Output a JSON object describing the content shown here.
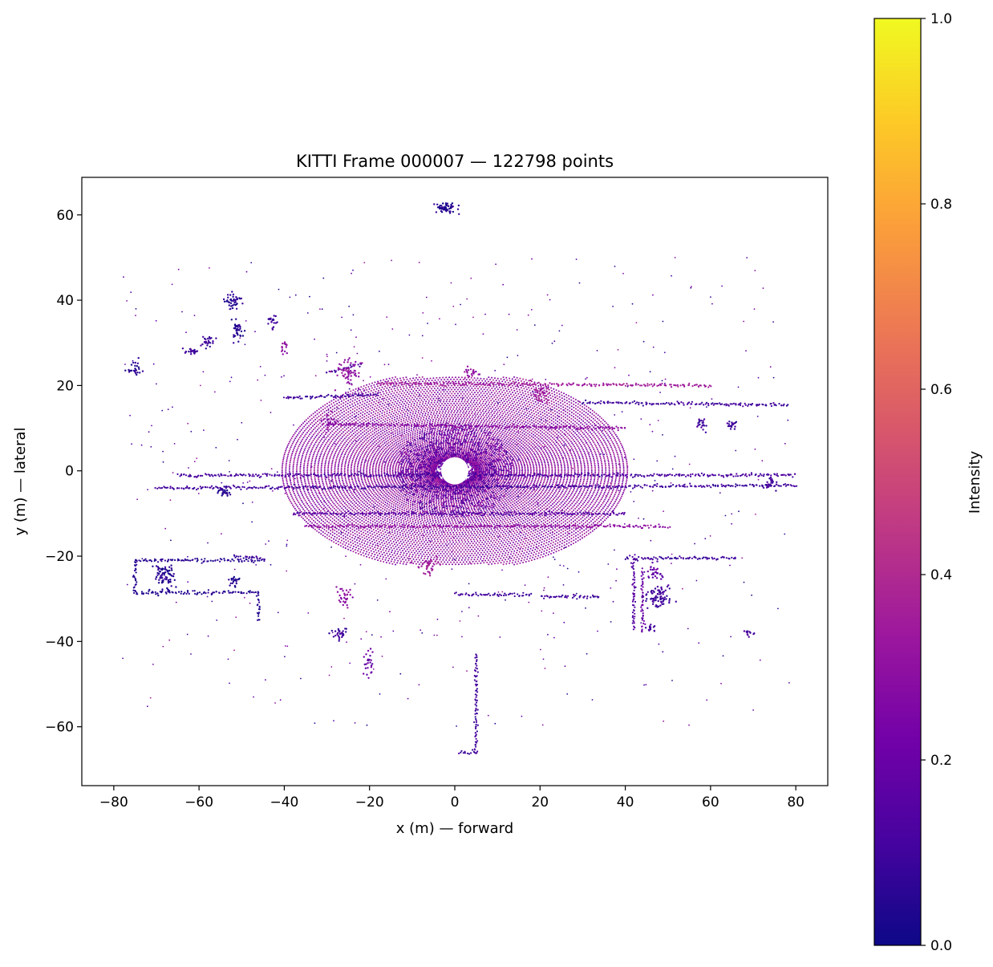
{
  "chart_data": {
    "type": "scatter",
    "title": "KITTI Frame 000007 — 122798 points",
    "xlabel": "x (m) — forward",
    "ylabel": "y (m) — lateral",
    "xlim": [
      -87.5,
      87.5
    ],
    "ylim": [
      -73.8,
      68.8
    ],
    "grid": false,
    "x_ticks": [
      -80,
      -60,
      -40,
      -20,
      0,
      20,
      40,
      60,
      80
    ],
    "x_tick_labels": [
      "−80",
      "−60",
      "−40",
      "−20",
      "0",
      "20",
      "40",
      "60",
      "80"
    ],
    "y_ticks": [
      60,
      40,
      20,
      0,
      -20,
      -40,
      -60
    ],
    "y_tick_labels": [
      "60",
      "40",
      "20",
      "0",
      "−20",
      "−40",
      "−60"
    ],
    "colorbar": {
      "label": "Intensity",
      "colormap": "plasma",
      "range": [
        0,
        1
      ],
      "ticks": [
        0.0,
        0.2,
        0.4,
        0.6,
        0.8,
        1.0
      ],
      "tick_labels": [
        "0.0",
        "0.2",
        "0.4",
        "0.6",
        "0.8",
        "1.0"
      ],
      "stops": [
        "#0d0887",
        "#46039f",
        "#7201a8",
        "#9c179e",
        "#bd3786",
        "#d8576b",
        "#ed7953",
        "#fb9f3a",
        "#fdca26",
        "#f0f921"
      ]
    },
    "point_count": 122798,
    "features": {
      "rings": {
        "center": [
          0,
          0
        ],
        "radius_min": 3.5,
        "radius_max": 30,
        "count": 55,
        "intensity": 0.3
      },
      "dense_core": {
        "center": [
          0,
          0
        ],
        "radius_min": 3,
        "radius_max": 14,
        "intensity": 0.08
      },
      "polylines": [
        {
          "points": [
            [
              -45,
              -21
            ],
            [
              -75,
              -21
            ],
            [
              -75,
              -28.5
            ],
            [
              -46,
              -28.5
            ],
            [
              -46,
              -35
            ]
          ],
          "intensity": 0.05
        },
        {
          "points": [
            [
              -18,
              20.5
            ],
            [
              60,
              20
            ]
          ],
          "intensity": 0.35
        },
        {
          "points": [
            [
              -40,
              17
            ],
            [
              -18,
              18
            ]
          ],
          "intensity": 0.1
        },
        {
          "points": [
            [
              30,
              16
            ],
            [
              78,
              15.5
            ]
          ],
          "intensity": 0.1
        },
        {
          "points": [
            [
              -45,
              -20.5
            ],
            [
              -52,
              -20
            ]
          ],
          "intensity": 0.1
        },
        {
          "points": [
            [
              40,
              -20.5
            ],
            [
              66,
              -20.5
            ]
          ],
          "intensity": 0.1
        },
        {
          "points": [
            [
              -38,
              -10
            ],
            [
              40,
              -10
            ]
          ],
          "intensity": 0.15
        },
        {
          "points": [
            [
              -35,
              -13
            ],
            [
              50,
              -13
            ]
          ],
          "intensity": 0.3
        },
        {
          "points": [
            [
              -30,
              11
            ],
            [
              40,
              10
            ]
          ],
          "intensity": 0.28
        },
        {
          "points": [
            [
              0,
              -29
            ],
            [
              18,
              -29
            ]
          ],
          "intensity": 0.1
        },
        {
          "points": [
            [
              20,
              -29.5
            ],
            [
              34,
              -29.5
            ]
          ],
          "intensity": 0.1
        },
        {
          "points": [
            [
              5,
              -43
            ],
            [
              5,
              -66
            ]
          ],
          "intensity": 0.1
        },
        {
          "points": [
            [
              1,
              -66
            ],
            [
              5,
              -66
            ]
          ],
          "intensity": 0.1
        },
        {
          "points": [
            [
              42,
              -20
            ],
            [
              42,
              -37
            ]
          ],
          "intensity": 0.15
        },
        {
          "points": [
            [
              44,
              -23
            ],
            [
              44,
              -38
            ]
          ],
          "intensity": 0.2
        },
        {
          "points": [
            [
              -30,
              23
            ],
            [
              -22,
              25
            ]
          ],
          "intensity": 0.1
        },
        {
          "points": [
            [
              -65,
              -1
            ],
            [
              80,
              -1
            ]
          ],
          "intensity": 0.12
        },
        {
          "points": [
            [
              -70,
              -4
            ],
            [
              80,
              -3.5
            ]
          ],
          "intensity": 0.1
        }
      ],
      "clusters": [
        {
          "center": [
            -2,
            61.5
          ],
          "size": [
            2.5,
            1.2
          ],
          "count": 60,
          "intensity": 0.05
        },
        {
          "center": [
            -52,
            40
          ],
          "size": [
            2,
            2
          ],
          "count": 40,
          "intensity": 0.05
        },
        {
          "center": [
            -51,
            33
          ],
          "size": [
            1.8,
            2.5
          ],
          "count": 40,
          "intensity": 0.05
        },
        {
          "center": [
            -62,
            28
          ],
          "size": [
            2,
            1
          ],
          "count": 25,
          "intensity": 0.1
        },
        {
          "center": [
            -58,
            30
          ],
          "size": [
            1.5,
            1.5
          ],
          "count": 25,
          "intensity": 0.1
        },
        {
          "center": [
            -43,
            35
          ],
          "size": [
            1.5,
            1.5
          ],
          "count": 20,
          "intensity": 0.1
        },
        {
          "center": [
            -25,
            23
          ],
          "size": [
            3,
            3
          ],
          "count": 60,
          "intensity": 0.3
        },
        {
          "center": [
            -40,
            29
          ],
          "size": [
            1,
            2
          ],
          "count": 15,
          "intensity": 0.3
        },
        {
          "center": [
            21,
            18
          ],
          "size": [
            3,
            2
          ],
          "count": 40,
          "intensity": 0.35
        },
        {
          "center": [
            4,
            23
          ],
          "size": [
            2,
            1
          ],
          "count": 20,
          "intensity": 0.3
        },
        {
          "center": [
            -68,
            -25
          ],
          "size": [
            2.5,
            3
          ],
          "count": 80,
          "intensity": 0.05
        },
        {
          "center": [
            -52,
            -26
          ],
          "size": [
            1.5,
            1.5
          ],
          "count": 20,
          "intensity": 0.05
        },
        {
          "center": [
            -26,
            -29
          ],
          "size": [
            1.5,
            2.5
          ],
          "count": 30,
          "intensity": 0.3
        },
        {
          "center": [
            -27,
            -38
          ],
          "size": [
            2,
            1.5
          ],
          "count": 30,
          "intensity": 0.1
        },
        {
          "center": [
            -20,
            -45
          ],
          "size": [
            1.5,
            3
          ],
          "count": 25,
          "intensity": 0.2
        },
        {
          "center": [
            48,
            -30
          ],
          "size": [
            3,
            3
          ],
          "count": 80,
          "intensity": 0.1
        },
        {
          "center": [
            47,
            -24
          ],
          "size": [
            2,
            2
          ],
          "count": 30,
          "intensity": 0.2
        },
        {
          "center": [
            46,
            -37
          ],
          "size": [
            1,
            1
          ],
          "count": 15,
          "intensity": 0.1
        },
        {
          "center": [
            -75,
            24
          ],
          "size": [
            2,
            1.5
          ],
          "count": 25,
          "intensity": 0.05
        },
        {
          "center": [
            -54,
            -5
          ],
          "size": [
            1.5,
            1.5
          ],
          "count": 25,
          "intensity": 0.05
        },
        {
          "center": [
            58,
            11
          ],
          "size": [
            1.5,
            1.5
          ],
          "count": 20,
          "intensity": 0.1
        },
        {
          "center": [
            65,
            11
          ],
          "size": [
            1.5,
            1.5
          ],
          "count": 20,
          "intensity": 0.1
        },
        {
          "center": [
            74,
            -3
          ],
          "size": [
            1.5,
            1.5
          ],
          "count": 20,
          "intensity": 0.1
        },
        {
          "center": [
            69,
            -38
          ],
          "size": [
            1,
            1
          ],
          "count": 12,
          "intensity": 0.1
        },
        {
          "center": [
            -6,
            -22
          ],
          "size": [
            3,
            2
          ],
          "count": 40,
          "intensity": 0.35
        },
        {
          "center": [
            -30,
            12
          ],
          "size": [
            2,
            2
          ],
          "count": 20,
          "intensity": 0.3
        }
      ],
      "scatter_noise": {
        "xlim": [
          -78,
          80
        ],
        "ylim": [
          -60,
          50
        ],
        "count": 1200
      }
    }
  }
}
